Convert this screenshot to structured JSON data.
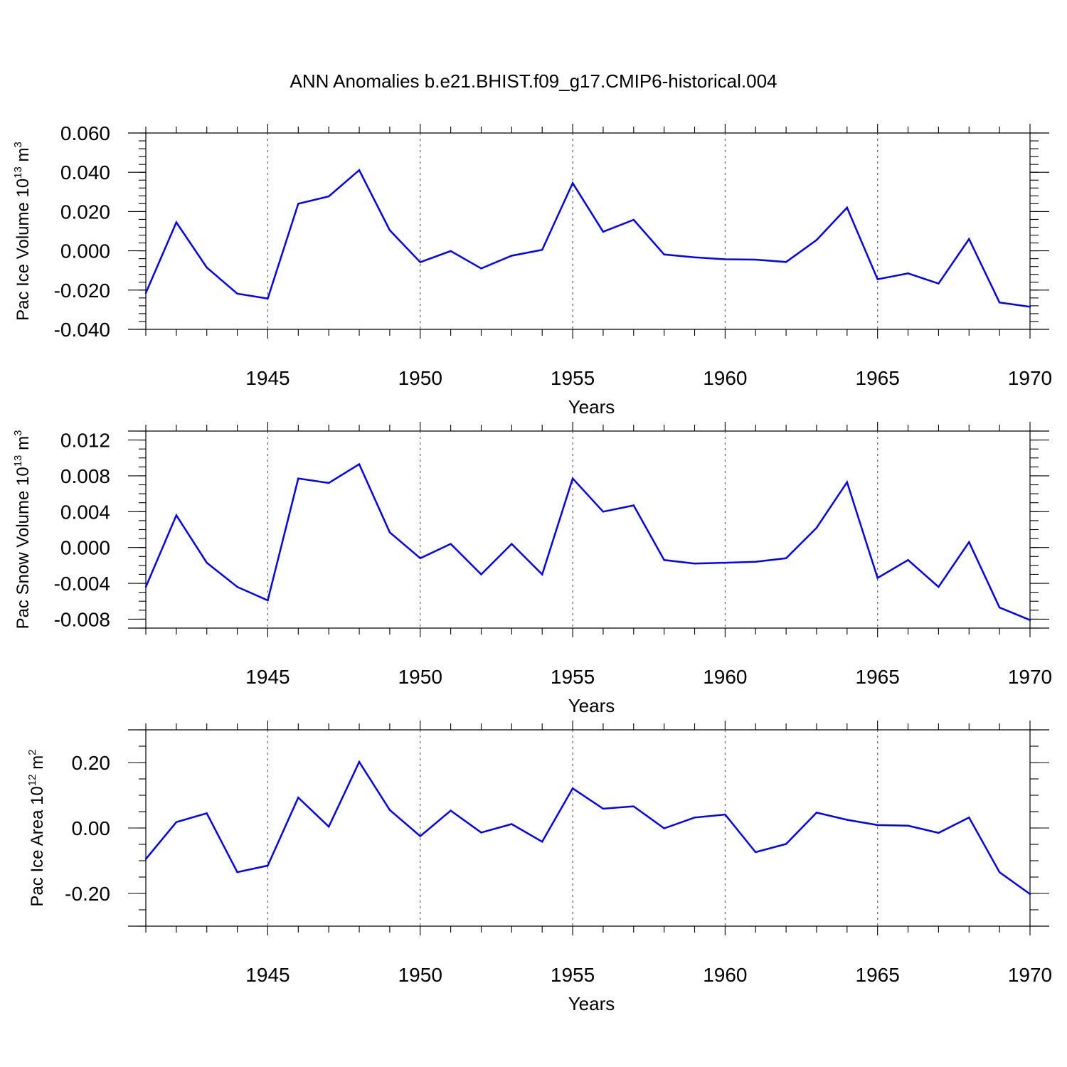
{
  "chart_data": {
    "type": "line",
    "title": "ANN Anomalies b.e21.BHIST.f09_g17.CMIP6-historical.004",
    "series_color": "#0000ff",
    "x": [
      1941,
      1942,
      1943,
      1944,
      1945,
      1946,
      1947,
      1948,
      1949,
      1950,
      1951,
      1952,
      1953,
      1954,
      1955,
      1956,
      1957,
      1958,
      1959,
      1960,
      1961,
      1962,
      1963,
      1964,
      1965,
      1966,
      1967,
      1968,
      1969,
      1970
    ],
    "xlim": [
      1941,
      1970
    ],
    "xticks": [
      1945,
      1950,
      1955,
      1960,
      1965,
      1970
    ],
    "xtick_labels": [
      "1945",
      "1950",
      "1955",
      "1960",
      "1965",
      "1970"
    ],
    "panels": [
      {
        "id": "ice-volume",
        "ylabel_main": "Pac Ice Volume 10",
        "ylabel_exp": "13",
        "ylabel_unit": " m",
        "ylabel_unit_exp": "3",
        "xlabel": "Years",
        "ylim": [
          -0.04,
          0.06
        ],
        "yticks": [
          -0.04,
          -0.02,
          0.0,
          0.02,
          0.04,
          0.06
        ],
        "ytick_labels": [
          "-0.040",
          "-0.020",
          "0.000",
          "0.020",
          "0.040",
          "0.060"
        ],
        "minor_step": 0.004,
        "values": [
          -0.0215,
          0.0145,
          -0.0085,
          -0.0218,
          -0.0243,
          0.024,
          0.0277,
          0.0411,
          0.0105,
          -0.0058,
          -0.0001,
          -0.009,
          -0.0025,
          0.0005,
          0.0345,
          0.0097,
          0.0158,
          -0.0019,
          -0.0033,
          -0.0043,
          -0.0045,
          -0.0057,
          0.0055,
          0.022,
          -0.0145,
          -0.0115,
          -0.0167,
          0.006,
          -0.0263,
          -0.0285
        ]
      },
      {
        "id": "snow-volume",
        "ylabel_main": "Pac Snow Volume 10",
        "ylabel_exp": "13",
        "ylabel_unit": " m",
        "ylabel_unit_exp": "3",
        "xlabel": "Years",
        "ylim": [
          -0.009,
          0.013
        ],
        "yticks": [
          -0.008,
          -0.004,
          0.0,
          0.004,
          0.008,
          0.012
        ],
        "ytick_labels": [
          "-0.008",
          "-0.004",
          "0.000",
          "0.004",
          "0.008",
          "0.012"
        ],
        "minor_step": 0.001,
        "values": [
          -0.0044,
          0.0036,
          -0.0017,
          -0.0044,
          -0.0059,
          0.0077,
          0.0072,
          0.0093,
          0.0017,
          -0.0012,
          0.0004,
          -0.003,
          0.0004,
          -0.003,
          0.0077,
          0.004,
          0.0047,
          -0.0014,
          -0.0018,
          -0.0017,
          -0.0016,
          -0.0012,
          0.0022,
          0.0073,
          -0.0034,
          -0.0014,
          -0.0044,
          0.0006,
          -0.0067,
          -0.0081
        ]
      },
      {
        "id": "ice-area",
        "ylabel_main": "Pac Ice Area 10",
        "ylabel_exp": "12",
        "ylabel_unit": " m",
        "ylabel_unit_exp": "2",
        "xlabel": "Years",
        "ylim": [
          -0.3,
          0.3
        ],
        "yticks": [
          -0.2,
          0.0,
          0.2
        ],
        "ytick_labels": [
          "-0.20",
          "0.00",
          "0.20"
        ],
        "minor_step": 0.05,
        "values": [
          -0.095,
          0.018,
          0.045,
          -0.135,
          -0.115,
          0.093,
          0.004,
          0.202,
          0.055,
          -0.025,
          0.053,
          -0.014,
          0.012,
          -0.042,
          0.121,
          0.059,
          0.066,
          -0.001,
          0.032,
          0.041,
          -0.074,
          -0.049,
          0.047,
          0.025,
          0.009,
          0.007,
          -0.015,
          0.032,
          -0.135,
          -0.202
        ]
      }
    ]
  }
}
